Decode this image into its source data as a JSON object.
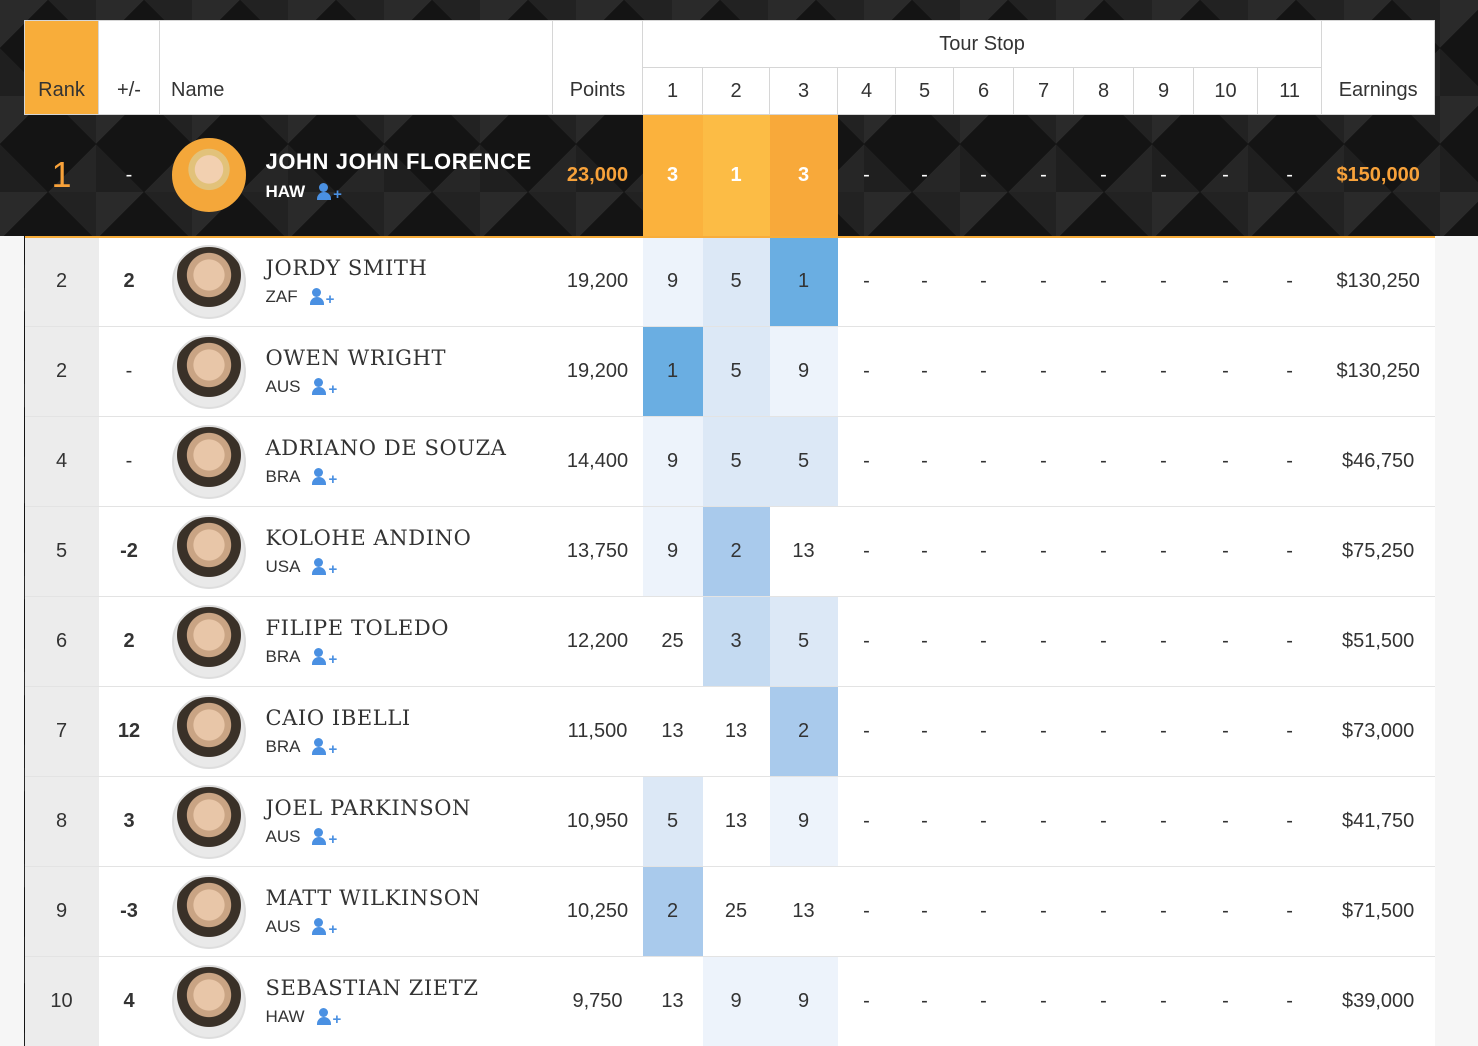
{
  "header": {
    "rank": "Rank",
    "move": "+/-",
    "name": "Name",
    "points": "Points",
    "tour_stop": "Tour Stop",
    "stops": [
      "1",
      "2",
      "3",
      "4",
      "5",
      "6",
      "7",
      "8",
      "9",
      "10",
      "11"
    ],
    "earnings": "Earnings"
  },
  "leader": {
    "rank": "1",
    "move": "-",
    "name": "JOHN JOHN FLORENCE",
    "country": "HAW",
    "points": "23,000",
    "results": [
      "3",
      "1",
      "3",
      "-",
      "-",
      "-",
      "-",
      "-",
      "-",
      "-",
      "-"
    ],
    "earnings": "$150,000"
  },
  "rows": [
    {
      "rank": "2",
      "move": "2",
      "trend": "up",
      "name": "JORDY SMITH",
      "country": "ZAF",
      "points": "19,200",
      "results": [
        "9",
        "5",
        "1",
        "-",
        "-",
        "-",
        "-",
        "-",
        "-",
        "-",
        "-"
      ],
      "shade": [
        "b1",
        "b2",
        "b5"
      ],
      "earnings": "$130,250"
    },
    {
      "rank": "2",
      "move": "-",
      "trend": "flat",
      "name": "OWEN WRIGHT",
      "country": "AUS",
      "points": "19,200",
      "results": [
        "1",
        "5",
        "9",
        "-",
        "-",
        "-",
        "-",
        "-",
        "-",
        "-",
        "-"
      ],
      "shade": [
        "b5",
        "b2",
        "b1"
      ],
      "earnings": "$130,250"
    },
    {
      "rank": "4",
      "move": "-",
      "trend": "flat",
      "name": "ADRIANO DE SOUZA",
      "country": "BRA",
      "points": "14,400",
      "results": [
        "9",
        "5",
        "5",
        "-",
        "-",
        "-",
        "-",
        "-",
        "-",
        "-",
        "-"
      ],
      "shade": [
        "b1",
        "b2",
        "b2"
      ],
      "earnings": "$46,750"
    },
    {
      "rank": "5",
      "move": "-2",
      "trend": "down",
      "name": "KOLOHE ANDINO",
      "country": "USA",
      "points": "13,750",
      "results": [
        "9",
        "2",
        "13",
        "-",
        "-",
        "-",
        "-",
        "-",
        "-",
        "-",
        "-"
      ],
      "shade": [
        "b1",
        "b4",
        ""
      ],
      "earnings": "$75,250"
    },
    {
      "rank": "6",
      "move": "2",
      "trend": "up",
      "name": "FILIPE TOLEDO",
      "country": "BRA",
      "points": "12,200",
      "results": [
        "25",
        "3",
        "5",
        "-",
        "-",
        "-",
        "-",
        "-",
        "-",
        "-",
        "-"
      ],
      "shade": [
        "",
        "b3",
        "b2"
      ],
      "earnings": "$51,500"
    },
    {
      "rank": "7",
      "move": "12",
      "trend": "up",
      "name": "CAIO IBELLI",
      "country": "BRA",
      "points": "11,500",
      "results": [
        "13",
        "13",
        "2",
        "-",
        "-",
        "-",
        "-",
        "-",
        "-",
        "-",
        "-"
      ],
      "shade": [
        "",
        "",
        "b4"
      ],
      "earnings": "$73,000"
    },
    {
      "rank": "8",
      "move": "3",
      "trend": "up",
      "name": "JOEL PARKINSON",
      "country": "AUS",
      "points": "10,950",
      "results": [
        "5",
        "13",
        "9",
        "-",
        "-",
        "-",
        "-",
        "-",
        "-",
        "-",
        "-"
      ],
      "shade": [
        "b2",
        "",
        "b1"
      ],
      "earnings": "$41,750"
    },
    {
      "rank": "9",
      "move": "-3",
      "trend": "down",
      "name": "MATT WILKINSON",
      "country": "AUS",
      "points": "10,250",
      "results": [
        "2",
        "25",
        "13",
        "-",
        "-",
        "-",
        "-",
        "-",
        "-",
        "-",
        "-"
      ],
      "shade": [
        "b4",
        "",
        ""
      ],
      "earnings": "$71,500"
    },
    {
      "rank": "10",
      "move": "4",
      "trend": "up",
      "name": "SEBASTIAN ZIETZ",
      "country": "HAW",
      "points": "9,750",
      "results": [
        "13",
        "9",
        "9",
        "-",
        "-",
        "-",
        "-",
        "-",
        "-",
        "-",
        "-"
      ],
      "shade": [
        "",
        "b1",
        "b1"
      ],
      "earnings": "$39,000"
    }
  ],
  "colors": {
    "accent": "#f8ad3a",
    "up": "#6dc21d",
    "down": "#d23434",
    "best_result": "#6aaee2",
    "follow_icon": "#4a90e2"
  },
  "icons": {
    "follow": "add-user-icon",
    "avatar": "surfer-avatar"
  }
}
